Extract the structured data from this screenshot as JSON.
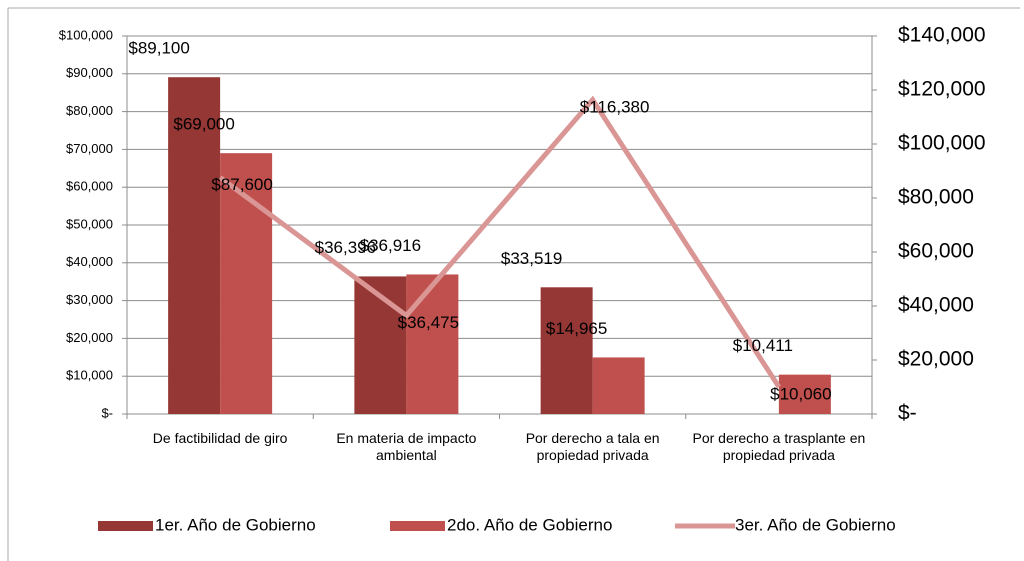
{
  "chart_data": {
    "type": "bar",
    "categories": [
      "De factibilidad de giro",
      "En materia de impacto ambiental",
      "Por derecho a tala en propiedad privada",
      "Por derecho a trasplante en propiedad privada"
    ],
    "series": [
      {
        "name": "1er. Año de Gobierno",
        "color": "#953735",
        "values": [
          89100,
          36396,
          33519,
          null
        ],
        "value_labels": [
          "$89,100",
          "$36,396",
          "$33,519",
          null
        ]
      },
      {
        "name": "2do. Año de Gobierno",
        "color": "#c0504d",
        "values": [
          69000,
          36916,
          14965,
          10411
        ],
        "value_labels": [
          "$69,000",
          "$36,916",
          "$14,965",
          "$10,411"
        ]
      },
      {
        "name": "3er. Año de Gobierno",
        "color": "#d99694",
        "type": "line",
        "axis": "y2",
        "values": [
          87600,
          36475,
          116380,
          10060
        ],
        "value_labels": [
          "$87,600",
          "$36,475",
          "$116,380",
          "$10,060"
        ]
      }
    ],
    "ylim": [
      0,
      100000
    ],
    "yticks": [
      {
        "value": 0,
        "label": "$-"
      },
      {
        "value": 10000,
        "label": "$10,000"
      },
      {
        "value": 20000,
        "label": "$20,000"
      },
      {
        "value": 30000,
        "label": "$30,000"
      },
      {
        "value": 40000,
        "label": "$40,000"
      },
      {
        "value": 50000,
        "label": "$50,000"
      },
      {
        "value": 60000,
        "label": "$60,000"
      },
      {
        "value": 70000,
        "label": "$70,000"
      },
      {
        "value": 80000,
        "label": "$80,000"
      },
      {
        "value": 90000,
        "label": "$90,000"
      },
      {
        "value": 100000,
        "label": "$100,000"
      }
    ],
    "y2lim": [
      0,
      140000
    ],
    "y2ticks": [
      {
        "value": 0,
        "label": "$-"
      },
      {
        "value": 20000,
        "label": "$20,000"
      },
      {
        "value": 40000,
        "label": "$40,000"
      },
      {
        "value": 60000,
        "label": "$60,000"
      },
      {
        "value": 80000,
        "label": "$80,000"
      },
      {
        "value": 100000,
        "label": "$100,000"
      },
      {
        "value": 120000,
        "label": "$120,000"
      },
      {
        "value": 140000,
        "label": "$140,000"
      }
    ],
    "grid": true,
    "legend": "bottom"
  }
}
